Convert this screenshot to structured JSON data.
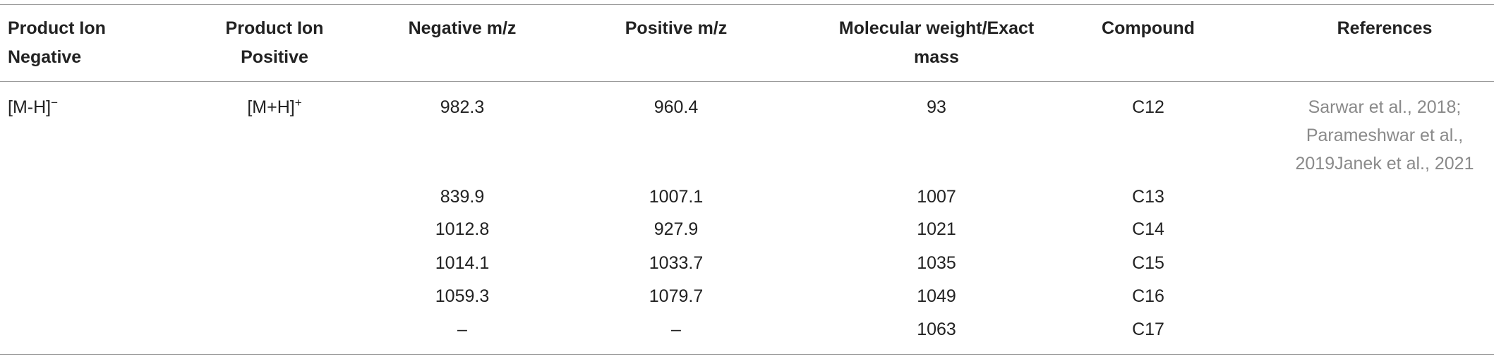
{
  "table": {
    "header": [
      "Product Ion Negative",
      "Product Ion Positive",
      "Negative m/z",
      "Positive m/z",
      "Molecular weight/Exact mass",
      "Compound",
      "References"
    ],
    "rows": [
      [
        {
          "text": "[M-H]",
          "sup": "−"
        },
        {
          "text": "[M+H]",
          "sup": "+"
        },
        "982.3",
        "960.4",
        "93",
        "C12",
        "Sarwar et al., 2018; Parameshwar et al., 2019Janek et al., 2021"
      ],
      [
        null,
        null,
        "839.9",
        "1007.1",
        "1007",
        "C13",
        null
      ],
      [
        null,
        null,
        "1012.8",
        "927.9",
        "1021",
        "C14",
        null
      ],
      [
        null,
        null,
        "1014.1",
        "1033.7",
        "1035",
        "C15",
        null
      ],
      [
        null,
        null,
        "1059.3",
        "1079.7",
        "1049",
        "C16",
        null
      ],
      [
        null,
        null,
        "–",
        "–",
        "1063",
        "C17",
        null
      ]
    ]
  }
}
